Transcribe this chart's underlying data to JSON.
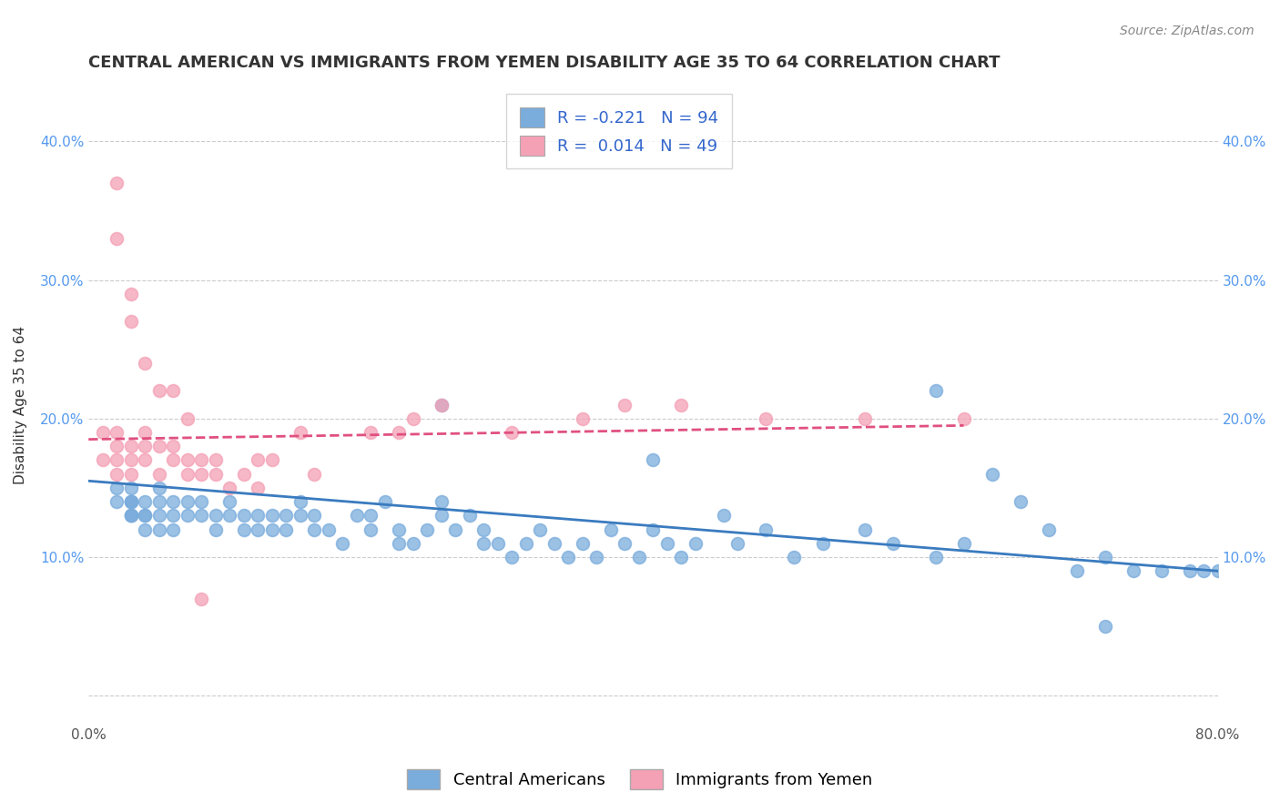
{
  "title": "CENTRAL AMERICAN VS IMMIGRANTS FROM YEMEN DISABILITY AGE 35 TO 64 CORRELATION CHART",
  "source": "Source: ZipAtlas.com",
  "ylabel": "Disability Age 35 to 64",
  "xlabel": "",
  "xlim": [
    0.0,
    0.8
  ],
  "ylim": [
    -0.02,
    0.44
  ],
  "xticks": [
    0.0,
    0.1,
    0.2,
    0.3,
    0.4,
    0.5,
    0.6,
    0.7,
    0.8
  ],
  "xticklabels": [
    "0.0%",
    "",
    "",
    "",
    "",
    "",
    "",
    "",
    "80.0%"
  ],
  "yticks": [
    0.0,
    0.1,
    0.2,
    0.3,
    0.4
  ],
  "yticklabels": [
    "",
    "10.0%",
    "20.0%",
    "30.0%",
    "40.0%"
  ],
  "blue_R": -0.221,
  "blue_N": 94,
  "pink_R": 0.014,
  "pink_N": 49,
  "blue_color": "#7aacdc",
  "pink_color": "#f4a0b5",
  "blue_line_color": "#3a7bbf",
  "pink_line_color": "#e05080",
  "legend_label_blue": "Central Americans",
  "legend_label_pink": "Immigrants from Yemen",
  "blue_scatter_x": [
    0.02,
    0.02,
    0.03,
    0.03,
    0.03,
    0.03,
    0.03,
    0.03,
    0.03,
    0.04,
    0.04,
    0.04,
    0.04,
    0.05,
    0.05,
    0.05,
    0.05,
    0.06,
    0.06,
    0.06,
    0.07,
    0.07,
    0.08,
    0.08,
    0.09,
    0.09,
    0.1,
    0.1,
    0.11,
    0.11,
    0.12,
    0.12,
    0.13,
    0.13,
    0.14,
    0.14,
    0.15,
    0.15,
    0.16,
    0.16,
    0.17,
    0.18,
    0.19,
    0.2,
    0.2,
    0.21,
    0.22,
    0.22,
    0.23,
    0.24,
    0.25,
    0.25,
    0.26,
    0.27,
    0.28,
    0.28,
    0.29,
    0.3,
    0.31,
    0.32,
    0.33,
    0.34,
    0.35,
    0.36,
    0.37,
    0.38,
    0.39,
    0.4,
    0.41,
    0.42,
    0.43,
    0.45,
    0.46,
    0.48,
    0.5,
    0.52,
    0.55,
    0.57,
    0.6,
    0.62,
    0.64,
    0.66,
    0.68,
    0.7,
    0.72,
    0.74,
    0.76,
    0.78,
    0.79,
    0.8,
    0.25,
    0.4,
    0.6,
    0.72
  ],
  "blue_scatter_y": [
    0.14,
    0.15,
    0.13,
    0.14,
    0.13,
    0.14,
    0.15,
    0.13,
    0.14,
    0.13,
    0.14,
    0.13,
    0.12,
    0.14,
    0.13,
    0.12,
    0.15,
    0.13,
    0.12,
    0.14,
    0.14,
    0.13,
    0.13,
    0.14,
    0.13,
    0.12,
    0.14,
    0.13,
    0.13,
    0.12,
    0.12,
    0.13,
    0.13,
    0.12,
    0.12,
    0.13,
    0.14,
    0.13,
    0.13,
    0.12,
    0.12,
    0.11,
    0.13,
    0.12,
    0.13,
    0.14,
    0.12,
    0.11,
    0.11,
    0.12,
    0.14,
    0.13,
    0.12,
    0.13,
    0.11,
    0.12,
    0.11,
    0.1,
    0.11,
    0.12,
    0.11,
    0.1,
    0.11,
    0.1,
    0.12,
    0.11,
    0.1,
    0.12,
    0.11,
    0.1,
    0.11,
    0.13,
    0.11,
    0.12,
    0.1,
    0.11,
    0.12,
    0.11,
    0.1,
    0.11,
    0.16,
    0.14,
    0.12,
    0.09,
    0.1,
    0.09,
    0.09,
    0.09,
    0.09,
    0.09,
    0.21,
    0.17,
    0.22,
    0.05
  ],
  "pink_scatter_x": [
    0.01,
    0.01,
    0.02,
    0.02,
    0.02,
    0.02,
    0.03,
    0.03,
    0.03,
    0.04,
    0.04,
    0.04,
    0.05,
    0.05,
    0.06,
    0.06,
    0.07,
    0.07,
    0.08,
    0.08,
    0.09,
    0.09,
    0.1,
    0.11,
    0.12,
    0.12,
    0.13,
    0.15,
    0.16,
    0.2,
    0.22,
    0.23,
    0.25,
    0.3,
    0.35,
    0.38,
    0.42,
    0.48,
    0.55,
    0.62,
    0.02,
    0.02,
    0.03,
    0.03,
    0.04,
    0.05,
    0.06,
    0.07,
    0.08
  ],
  "pink_scatter_y": [
    0.19,
    0.17,
    0.19,
    0.18,
    0.17,
    0.16,
    0.18,
    0.17,
    0.16,
    0.19,
    0.18,
    0.17,
    0.18,
    0.16,
    0.17,
    0.18,
    0.16,
    0.17,
    0.16,
    0.17,
    0.16,
    0.17,
    0.15,
    0.16,
    0.17,
    0.15,
    0.17,
    0.19,
    0.16,
    0.19,
    0.19,
    0.2,
    0.21,
    0.19,
    0.2,
    0.21,
    0.21,
    0.2,
    0.2,
    0.2,
    0.37,
    0.33,
    0.29,
    0.27,
    0.24,
    0.22,
    0.22,
    0.2,
    0.07
  ],
  "blue_trend_x": [
    0.0,
    0.8
  ],
  "blue_trend_y": [
    0.155,
    0.09
  ],
  "pink_trend_x": [
    0.0,
    0.62
  ],
  "pink_trend_y": [
    0.185,
    0.195
  ],
  "background_color": "#ffffff",
  "grid_color": "#cccccc",
  "title_fontsize": 13,
  "label_fontsize": 11,
  "tick_fontsize": 11,
  "legend_fontsize": 13
}
